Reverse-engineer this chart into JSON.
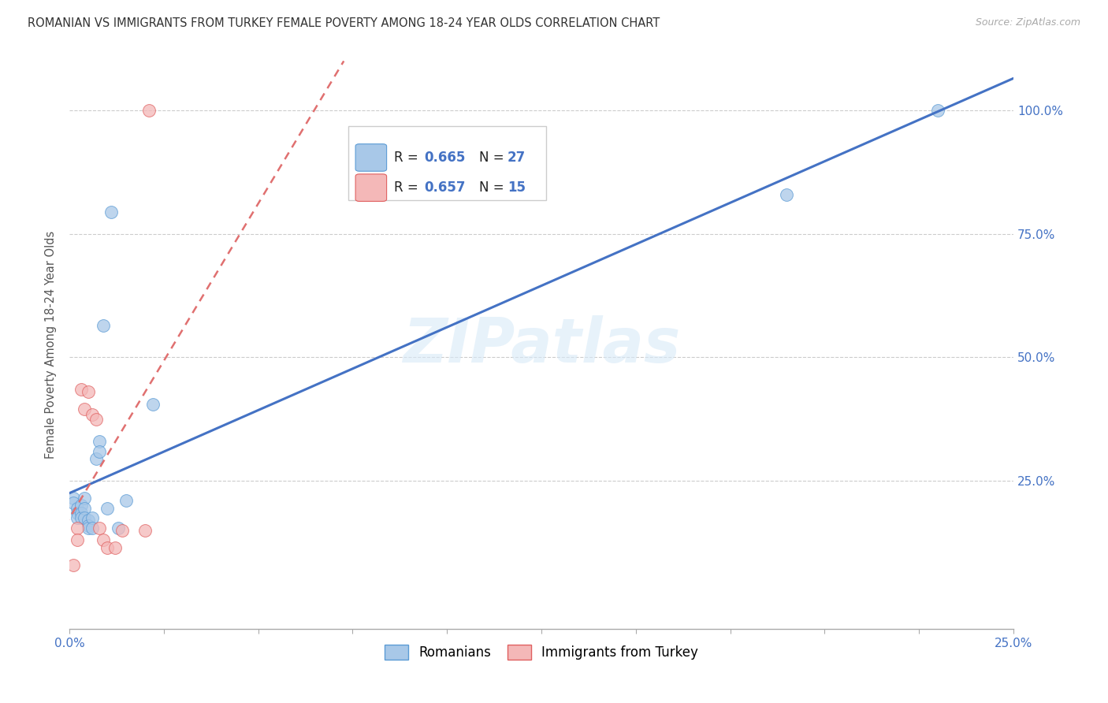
{
  "title": "ROMANIAN VS IMMIGRANTS FROM TURKEY FEMALE POVERTY AMONG 18-24 YEAR OLDS CORRELATION CHART",
  "source": "Source: ZipAtlas.com",
  "ylabel": "Female Poverty Among 18-24 Year Olds",
  "xlim": [
    0.0,
    0.25
  ],
  "ylim": [
    -0.05,
    1.1
  ],
  "ytick_positions": [
    0.25,
    0.5,
    0.75,
    1.0
  ],
  "ytick_labels": [
    "25.0%",
    "50.0%",
    "75.0%",
    "100.0%"
  ],
  "xtick_positions": [
    0.0,
    0.025,
    0.05,
    0.075,
    0.1,
    0.125,
    0.15,
    0.175,
    0.2,
    0.225,
    0.25
  ],
  "romanians_x": [
    0.001,
    0.001,
    0.002,
    0.002,
    0.002,
    0.003,
    0.003,
    0.003,
    0.004,
    0.004,
    0.004,
    0.005,
    0.005,
    0.005,
    0.006,
    0.006,
    0.007,
    0.008,
    0.008,
    0.009,
    0.01,
    0.011,
    0.013,
    0.015,
    0.022,
    0.19,
    0.23
  ],
  "romanians_y": [
    0.215,
    0.205,
    0.195,
    0.185,
    0.175,
    0.2,
    0.185,
    0.175,
    0.215,
    0.195,
    0.175,
    0.17,
    0.16,
    0.155,
    0.175,
    0.155,
    0.295,
    0.33,
    0.31,
    0.565,
    0.195,
    0.795,
    0.155,
    0.21,
    0.405,
    0.83,
    1.0
  ],
  "turkey_x": [
    0.001,
    0.002,
    0.002,
    0.003,
    0.004,
    0.005,
    0.006,
    0.007,
    0.008,
    0.009,
    0.01,
    0.012,
    0.014,
    0.02,
    0.021
  ],
  "turkey_y": [
    0.08,
    0.155,
    0.13,
    0.435,
    0.395,
    0.43,
    0.385,
    0.375,
    0.155,
    0.13,
    0.115,
    0.115,
    0.15,
    0.15,
    1.0
  ],
  "romanian_fill_color": "#a8c8e8",
  "romanian_edge_color": "#5b9bd5",
  "turkey_fill_color": "#f4b8b8",
  "turkey_edge_color": "#e06060",
  "romanian_line_color": "#4472c4",
  "turkey_line_color": "#e07070",
  "r_romanian": 0.665,
  "n_romanian": 27,
  "r_turkey": 0.657,
  "n_turkey": 15,
  "marker_size": 130,
  "watermark": "ZIPatlas",
  "background_color": "#ffffff"
}
